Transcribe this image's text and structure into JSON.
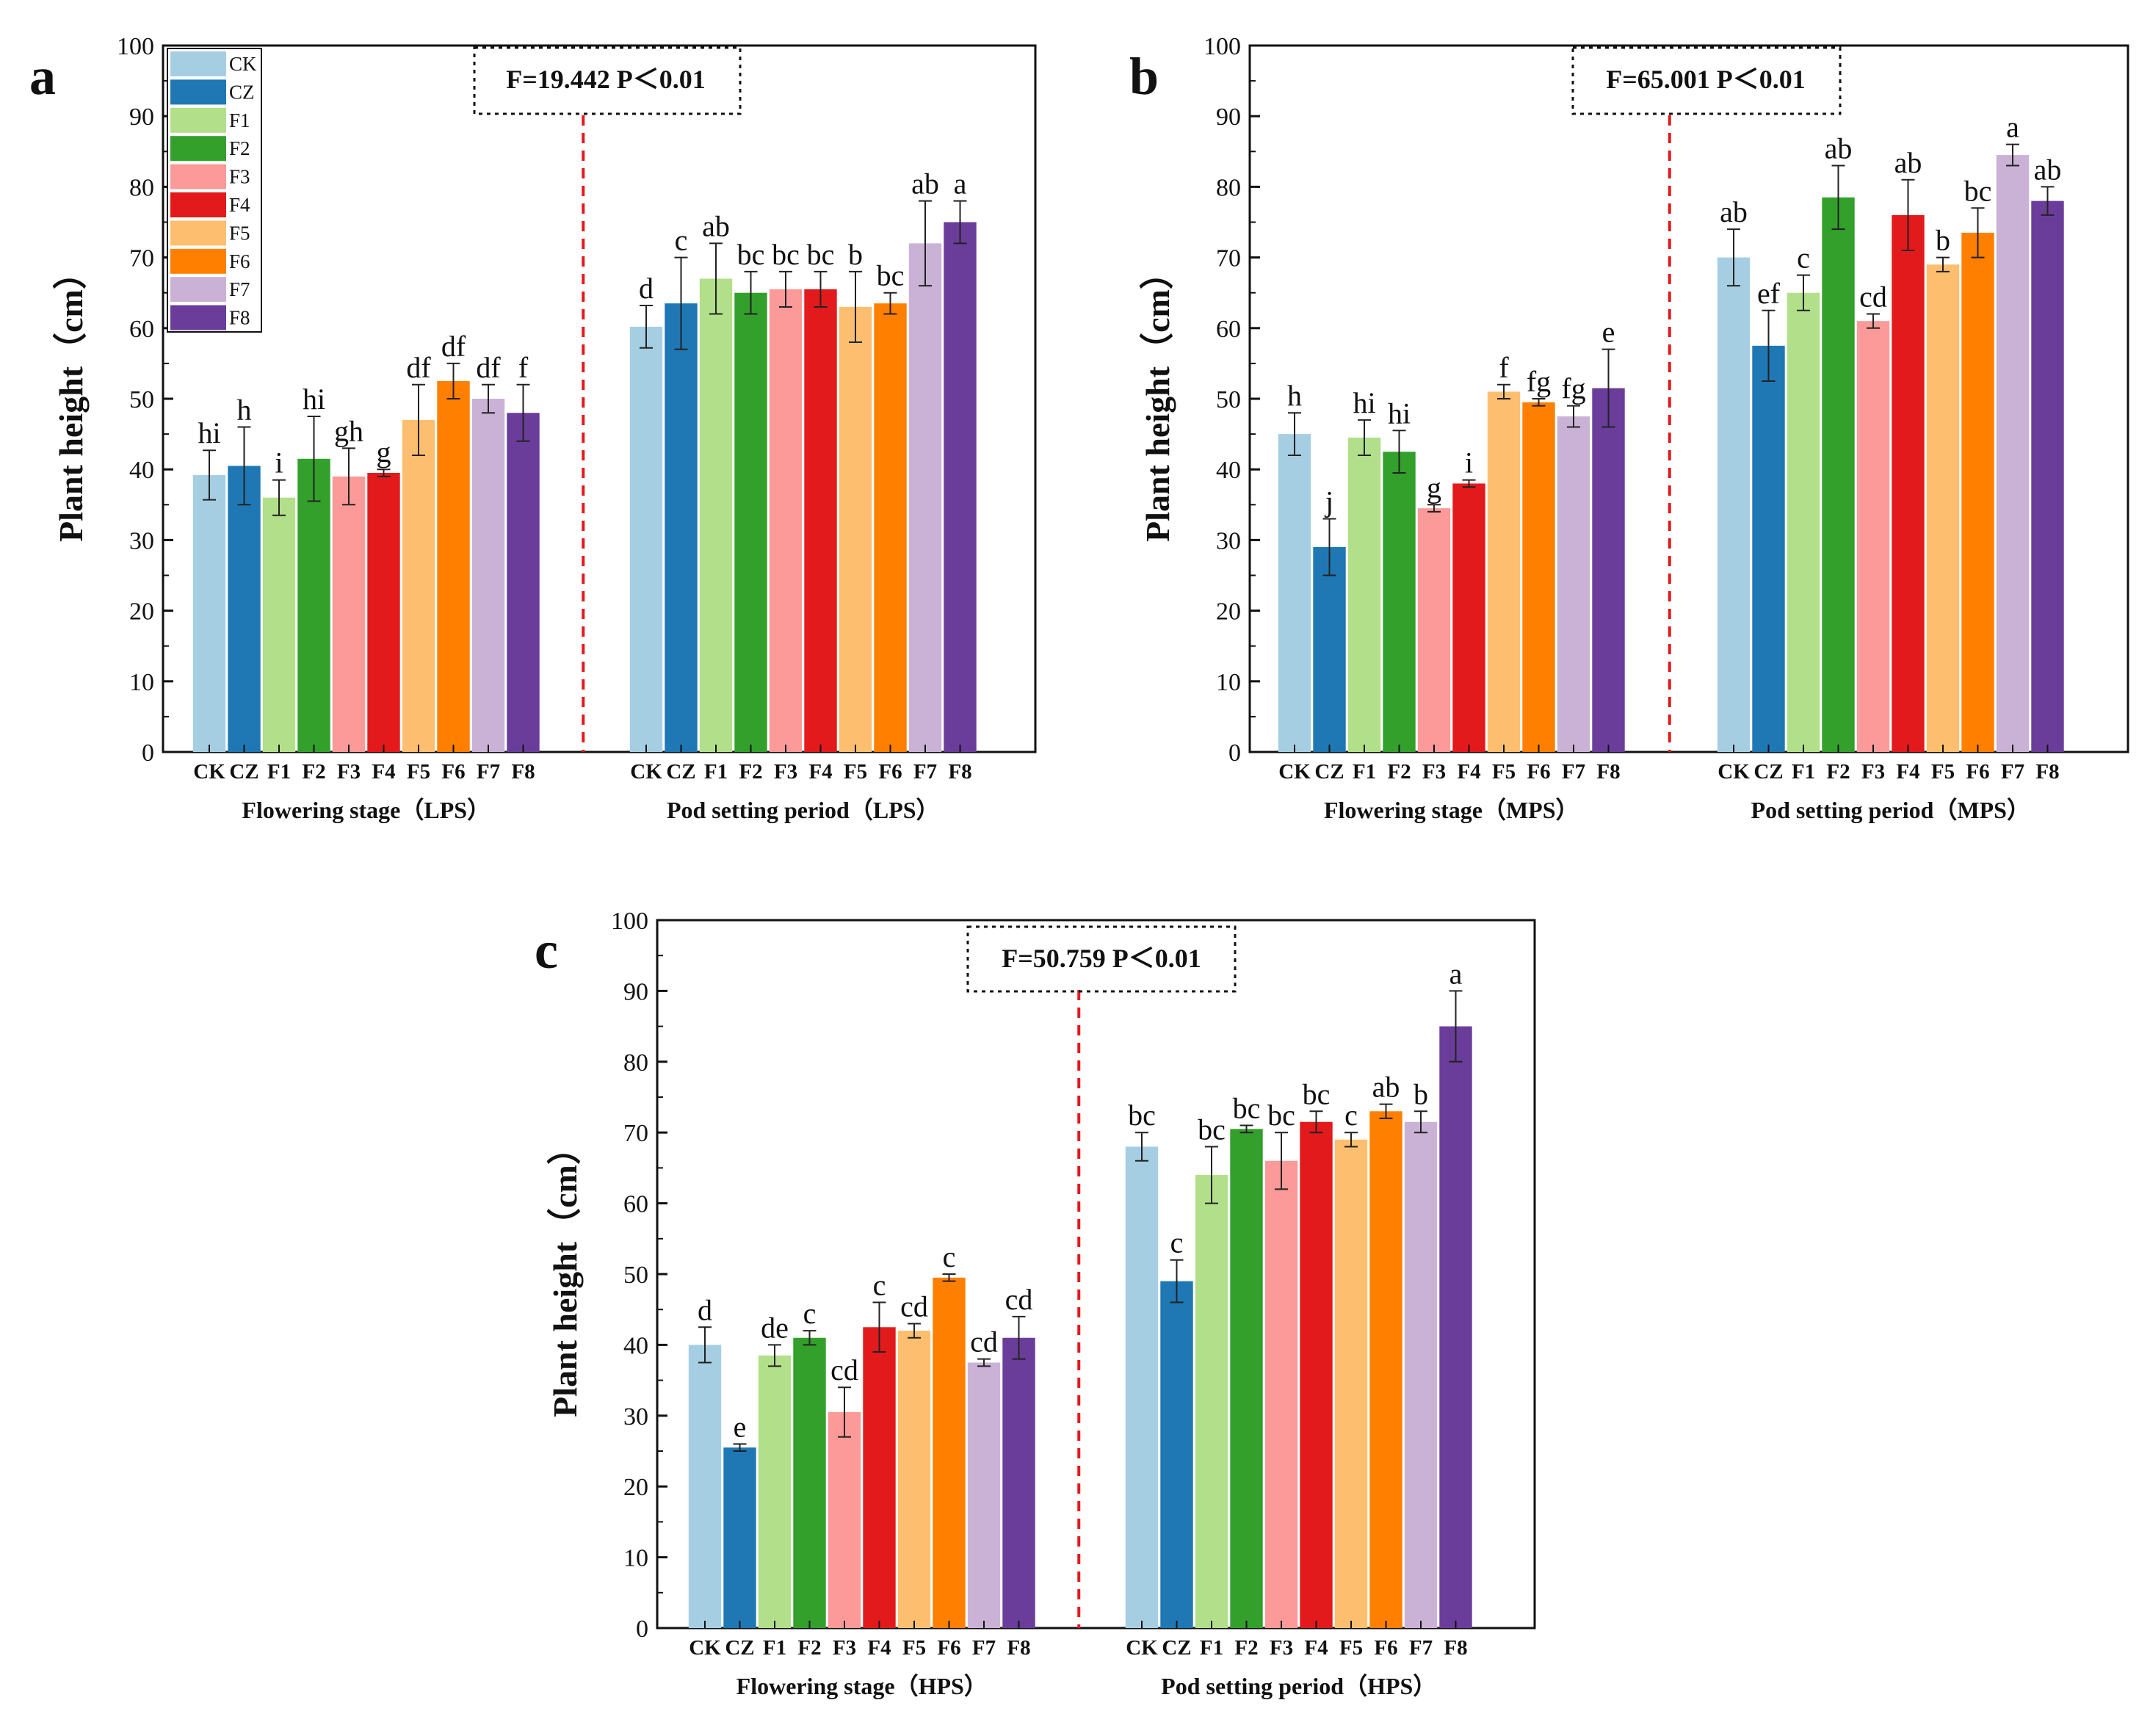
{
  "colors": {
    "CK": "#a6cee3",
    "CZ": "#1f78b4",
    "F1": "#b2df8a",
    "F2": "#33a02c",
    "F3": "#fb9a99",
    "F4": "#e31a1c",
    "F5": "#fdbf6f",
    "F6": "#ff7f00",
    "F7": "#cab2d6",
    "F8": "#6a3d9a",
    "divider": "#e31a1c"
  },
  "legend": [
    "CK",
    "CZ",
    "F1",
    "F2",
    "F3",
    "F4",
    "F5",
    "F6",
    "F7",
    "F8"
  ],
  "chart_data": [
    {
      "panel": "a",
      "type": "bar",
      "ylabel": "Plant height（cm）",
      "ylim": [
        0,
        100
      ],
      "yticks": [
        "0",
        "10",
        "20",
        "30",
        "40",
        "50",
        "60",
        "70",
        "80",
        "90",
        "100"
      ],
      "stat": "F=19.442  P＜0.01",
      "categories": [
        "CK",
        "CZ",
        "F1",
        "F2",
        "F3",
        "F4",
        "F5",
        "F6",
        "F7",
        "F8"
      ],
      "groups": [
        {
          "name": "Flowering stage（LPS）",
          "values": [
            39.2,
            40.5,
            36,
            41.5,
            39,
            39.5,
            47,
            52.5,
            50,
            48
          ],
          "errors": [
            3.5,
            5.5,
            2.5,
            6,
            4,
            0.5,
            5,
            2.5,
            2,
            4
          ],
          "labels": [
            "hi",
            "h",
            "i",
            "hi",
            "gh",
            "g",
            "df",
            "df",
            "df",
            "f"
          ]
        },
        {
          "name": "Pod setting period（LPS）",
          "values": [
            60.2,
            63.5,
            67,
            65,
            65.5,
            65.5,
            63,
            63.5,
            72,
            75
          ],
          "errors": [
            3,
            6.5,
            5,
            3,
            2.5,
            2.5,
            5,
            1.5,
            6,
            3
          ],
          "labels": [
            "d",
            "c",
            "ab",
            "bc",
            "bc",
            "bc",
            "b",
            "bc",
            "ab",
            "a"
          ]
        }
      ]
    },
    {
      "panel": "b",
      "type": "bar",
      "ylabel": "Plant height（cm）",
      "ylim": [
        0,
        100
      ],
      "yticks": [
        "0",
        "10",
        "20",
        "30",
        "40",
        "50",
        "60",
        "70",
        "80",
        "90",
        "100"
      ],
      "stat": "F=65.001  P＜0.01",
      "categories": [
        "CK",
        "CZ",
        "F1",
        "F2",
        "F3",
        "F4",
        "F5",
        "F6",
        "F7",
        "F8"
      ],
      "groups": [
        {
          "name": "Flowering stage（MPS）",
          "values": [
            45,
            29,
            44.5,
            42.5,
            34.5,
            38,
            51,
            49.5,
            47.5,
            51.5
          ],
          "errors": [
            3,
            4,
            2.5,
            3,
            0.5,
            0.5,
            1,
            0.5,
            1.5,
            5.5
          ],
          "labels": [
            "h",
            "j",
            "hi",
            "hi",
            "g",
            "i",
            "f",
            "fg",
            "fg",
            "e"
          ]
        },
        {
          "name": "Pod setting period（MPS）",
          "values": [
            70,
            57.5,
            65,
            78.5,
            61,
            76,
            69,
            73.5,
            84.5,
            78
          ],
          "errors": [
            4,
            5,
            2.5,
            4.5,
            1,
            5,
            1,
            3.5,
            1.5,
            2
          ],
          "labels": [
            "ab",
            "ef",
            "c",
            "ab",
            "cd",
            "ab",
            "b",
            "bc",
            "a",
            "ab"
          ]
        }
      ]
    },
    {
      "panel": "c",
      "type": "bar",
      "ylabel": "Plant height（cm）",
      "ylim": [
        0,
        100
      ],
      "yticks": [
        "0",
        "10",
        "20",
        "30",
        "40",
        "50",
        "60",
        "70",
        "80",
        "90",
        "100"
      ],
      "stat": "F=50.759  P＜0.01",
      "categories": [
        "CK",
        "CZ",
        "F1",
        "F2",
        "F3",
        "F4",
        "F5",
        "F6",
        "F7",
        "F8"
      ],
      "groups": [
        {
          "name": "Flowering stage（HPS）",
          "values": [
            40,
            25.5,
            38.5,
            41,
            30.5,
            42.5,
            42,
            49.5,
            37.5,
            41
          ],
          "errors": [
            2.5,
            0.5,
            1.5,
            1,
            3.5,
            3.5,
            1,
            0.5,
            0.5,
            3
          ],
          "labels": [
            "d",
            "e",
            "de",
            "c",
            "cd",
            "c",
            "cd",
            "c",
            "cd",
            "cd"
          ]
        },
        {
          "name": "Pod setting period（HPS）",
          "values": [
            68,
            49,
            64,
            70.5,
            66,
            71.5,
            69,
            73,
            71.5,
            85
          ],
          "errors": [
            2,
            3,
            4,
            0.5,
            4,
            1.5,
            1,
            1,
            1.5,
            5
          ],
          "labels": [
            "bc",
            "c",
            "bc",
            "bc",
            "bc",
            "bc",
            "c",
            "ab",
            "b",
            "a"
          ]
        }
      ]
    }
  ]
}
